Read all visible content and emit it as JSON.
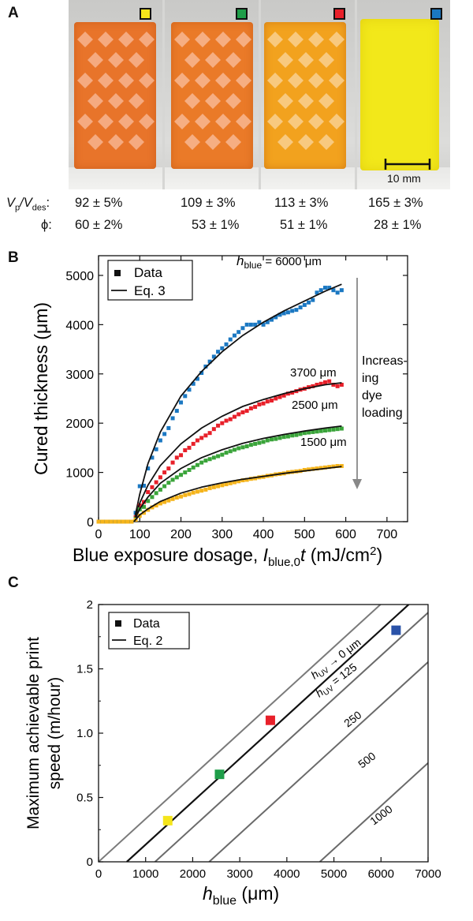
{
  "panel_a": {
    "label": "A",
    "marker_colors": [
      "#f5e51b",
      "#1f9e49",
      "#e8202a",
      "#1b78c2"
    ],
    "sample_colors": [
      "#e8742a",
      "#ea7a28",
      "#f2a21e",
      "#f2e81a"
    ],
    "scale_label": "10 mm",
    "row1_label_main": "V",
    "row1_label_sub1": "p",
    "row1_label_mid": "/V",
    "row1_label_sub2": "des",
    "row1_label_colon": ":",
    "row1_values": [
      "92 ± 5%",
      "109 ± 3%",
      "113 ± 3%",
      "165 ± 3%"
    ],
    "row2_label": "ϕ:",
    "row2_values": [
      "60 ± 2%",
      "53 ± 1%",
      "51 ± 1%",
      "28 ± 1%"
    ]
  },
  "panel_b": {
    "label": "B"
  },
  "panel_c": {
    "label": "C"
  },
  "chart_data": [
    {
      "type": "scatter",
      "panel": "B",
      "xlabel_main": "Blue exposure dosage,",
      "xlabel_var": "I",
      "xlabel_sub": "blue,0",
      "xlabel_t": "t",
      "xlabel_unit": "(mJ/cm",
      "xlabel_sup": "2",
      "xlabel_close": ")",
      "ylabel": "Cured thickness (μm)",
      "xlim": [
        0,
        750
      ],
      "ylim": [
        0,
        5400
      ],
      "xticks": [
        0,
        100,
        200,
        300,
        400,
        500,
        600,
        700
      ],
      "yticks": [
        0,
        1000,
        2000,
        3000,
        4000,
        5000
      ],
      "legend": {
        "position": "top-left",
        "data_label": "Data",
        "model_label": "Eq. 3"
      },
      "arrow_text": [
        "Increas-",
        "ing",
        "dye",
        "loading"
      ],
      "series": [
        {
          "name": "6000 μm",
          "label_prefix": "h",
          "label_sub": "blue",
          "label_rest": " = 6000 μm",
          "color": "#1b78c2",
          "x": [
            0,
            10,
            20,
            30,
            40,
            50,
            60,
            70,
            80,
            90,
            100,
            110,
            120,
            130,
            140,
            150,
            160,
            170,
            180,
            190,
            200,
            210,
            220,
            230,
            240,
            250,
            260,
            270,
            280,
            290,
            300,
            310,
            320,
            330,
            340,
            350,
            360,
            370,
            380,
            390,
            400,
            410,
            420,
            430,
            440,
            450,
            460,
            470,
            480,
            490,
            500,
            510,
            520,
            530,
            540,
            550,
            560,
            570,
            580,
            590
          ],
          "y": [
            0,
            0,
            0,
            0,
            0,
            0,
            0,
            0,
            0,
            180,
            720,
            730,
            1080,
            1300,
            1470,
            1650,
            1780,
            1900,
            2100,
            2250,
            2420,
            2550,
            2680,
            2800,
            2900,
            3020,
            3150,
            3250,
            3350,
            3450,
            3520,
            3600,
            3700,
            3780,
            3850,
            3930,
            4000,
            4000,
            4000,
            4050,
            4000,
            4050,
            4100,
            4150,
            4200,
            4230,
            4250,
            4280,
            4300,
            4350,
            4400,
            4450,
            4500,
            4650,
            4700,
            4750,
            4750,
            4700,
            4650,
            4700
          ],
          "fit": [
            [
              86,
              0
            ],
            [
              100,
              560
            ],
            [
              120,
              1180
            ],
            [
              150,
              1820
            ],
            [
              200,
              2550
            ],
            [
              250,
              3050
            ],
            [
              300,
              3450
            ],
            [
              350,
              3780
            ],
            [
              400,
              4050
            ],
            [
              450,
              4280
            ],
            [
              500,
              4480
            ],
            [
              550,
              4680
            ],
            [
              590,
              4820
            ]
          ]
        },
        {
          "name": "3700 μm",
          "label_prefix": "",
          "label_sub": "",
          "label_rest": "3700 μm",
          "color": "#e8202a",
          "x": [
            0,
            10,
            20,
            30,
            40,
            50,
            60,
            70,
            80,
            90,
            100,
            110,
            120,
            130,
            140,
            150,
            160,
            170,
            180,
            190,
            200,
            210,
            220,
            230,
            240,
            250,
            260,
            270,
            280,
            290,
            300,
            310,
            320,
            330,
            340,
            350,
            360,
            370,
            380,
            390,
            400,
            410,
            420,
            430,
            440,
            450,
            460,
            470,
            480,
            490,
            500,
            510,
            520,
            530,
            540,
            550,
            560,
            570,
            580,
            590
          ],
          "y": [
            0,
            0,
            0,
            0,
            0,
            0,
            0,
            0,
            0,
            90,
            330,
            400,
            600,
            700,
            800,
            900,
            1000,
            1080,
            1200,
            1300,
            1350,
            1450,
            1500,
            1580,
            1650,
            1700,
            1750,
            1800,
            1880,
            1950,
            2000,
            2050,
            2080,
            2130,
            2180,
            2220,
            2250,
            2300,
            2330,
            2380,
            2400,
            2440,
            2460,
            2500,
            2530,
            2560,
            2600,
            2620,
            2650,
            2680,
            2700,
            2730,
            2750,
            2780,
            2800,
            2830,
            2850,
            2780,
            2750,
            2780
          ],
          "fit": [
            [
              86,
              0
            ],
            [
              100,
              380
            ],
            [
              120,
              740
            ],
            [
              150,
              1140
            ],
            [
              200,
              1580
            ],
            [
              250,
              1900
            ],
            [
              300,
              2140
            ],
            [
              350,
              2340
            ],
            [
              400,
              2480
            ],
            [
              450,
              2600
            ],
            [
              500,
              2700
            ],
            [
              550,
              2780
            ],
            [
              590,
              2820
            ]
          ]
        },
        {
          "name": "2500 μm",
          "label_prefix": "",
          "label_sub": "",
          "label_rest": "2500 μm",
          "color": "#3aa43a",
          "x": [
            0,
            10,
            20,
            30,
            40,
            50,
            60,
            70,
            80,
            90,
            100,
            110,
            120,
            130,
            140,
            150,
            160,
            170,
            180,
            190,
            200,
            210,
            220,
            230,
            240,
            250,
            260,
            270,
            280,
            290,
            300,
            310,
            320,
            330,
            340,
            350,
            360,
            370,
            380,
            390,
            400,
            410,
            420,
            430,
            440,
            450,
            460,
            470,
            480,
            490,
            500,
            510,
            520,
            530,
            540,
            550,
            560,
            570,
            580,
            590
          ],
          "y": [
            0,
            0,
            0,
            0,
            0,
            0,
            0,
            0,
            0,
            60,
            250,
            300,
            420,
            500,
            580,
            650,
            720,
            790,
            850,
            900,
            950,
            1000,
            1050,
            1100,
            1150,
            1200,
            1240,
            1270,
            1300,
            1330,
            1360,
            1400,
            1430,
            1460,
            1490,
            1510,
            1530,
            1560,
            1580,
            1600,
            1620,
            1650,
            1670,
            1680,
            1700,
            1720,
            1730,
            1750,
            1760,
            1780,
            1800,
            1810,
            1820,
            1830,
            1840,
            1850,
            1860,
            1870,
            1880,
            1890
          ],
          "fit": [
            [
              86,
              0
            ],
            [
              100,
              260
            ],
            [
              120,
              500
            ],
            [
              150,
              780
            ],
            [
              200,
              1080
            ],
            [
              250,
              1300
            ],
            [
              300,
              1460
            ],
            [
              350,
              1590
            ],
            [
              400,
              1690
            ],
            [
              450,
              1770
            ],
            [
              500,
              1840
            ],
            [
              550,
              1900
            ],
            [
              590,
              1940
            ]
          ]
        },
        {
          "name": "1500 μm",
          "label_prefix": "",
          "label_sub": "",
          "label_rest": "1500 μm",
          "color": "#f5b41b",
          "x": [
            0,
            10,
            20,
            30,
            40,
            50,
            60,
            70,
            80,
            90,
            100,
            110,
            120,
            130,
            140,
            150,
            160,
            170,
            180,
            190,
            200,
            210,
            220,
            230,
            240,
            250,
            260,
            270,
            280,
            290,
            300,
            310,
            320,
            330,
            340,
            350,
            360,
            370,
            380,
            390,
            400,
            410,
            420,
            430,
            440,
            450,
            460,
            470,
            480,
            490,
            500,
            510,
            520,
            530,
            540,
            550,
            560,
            570,
            580,
            590
          ],
          "y": [
            0,
            0,
            0,
            0,
            0,
            0,
            0,
            0,
            0,
            40,
            120,
            180,
            240,
            290,
            330,
            370,
            400,
            430,
            460,
            490,
            510,
            540,
            560,
            590,
            610,
            630,
            650,
            680,
            700,
            720,
            740,
            760,
            780,
            800,
            820,
            840,
            850,
            870,
            880,
            900,
            910,
            930,
            940,
            960,
            970,
            980,
            1000,
            1010,
            1020,
            1030,
            1050,
            1060,
            1070,
            1080,
            1090,
            1100,
            1110,
            1120,
            1130,
            1130
          ],
          "fit": [
            [
              86,
              0
            ],
            [
              100,
              140
            ],
            [
              120,
              260
            ],
            [
              150,
              410
            ],
            [
              200,
              580
            ],
            [
              250,
              700
            ],
            [
              300,
              790
            ],
            [
              350,
              860
            ],
            [
              400,
              920
            ],
            [
              450,
              980
            ],
            [
              500,
              1030
            ],
            [
              550,
              1080
            ],
            [
              590,
              1120
            ]
          ]
        }
      ]
    },
    {
      "type": "scatter",
      "panel": "C",
      "xlabel_var": "h",
      "xlabel_sub": "blue",
      "xlabel_unit": "(μm)",
      "ylabel_line1": "Maximum achievable print",
      "ylabel_line2": "speed (m/hour)",
      "xlim": [
        0,
        7000
      ],
      "ylim": [
        0,
        2
      ],
      "xticks": [
        0,
        1000,
        2000,
        3000,
        4000,
        5000,
        6000,
        7000
      ],
      "yticks": [
        0,
        0.5,
        1.0,
        1.5,
        2
      ],
      "ytick_labels": [
        "0",
        "0.5",
        "1.0",
        "1.5",
        "2"
      ],
      "legend": {
        "position": "top-left",
        "data_label": "Data",
        "model_label": "Eq. 2"
      },
      "points": [
        {
          "x": 1470,
          "y": 0.32,
          "color": "#f5e51b"
        },
        {
          "x": 2570,
          "y": 0.68,
          "color": "#1f9e49"
        },
        {
          "x": 3650,
          "y": 1.1,
          "color": "#e8202a"
        },
        {
          "x": 6320,
          "y": 1.8,
          "color": "#2a52a8"
        }
      ],
      "lines": [
        {
          "h_uv": 0,
          "offset_x": 0,
          "color": "#7a7a7a",
          "label": ""
        },
        {
          "h_uv": 125,
          "offset_x": 600,
          "color": "#111111",
          "label_a": "h",
          "label_a_sub": "UV",
          "label_a_rest": " → 0 μm",
          "label_b": "h",
          "label_b_sub": "UV",
          "label_b_rest": " = 125"
        },
        {
          "h_uv": 250,
          "offset_x": 1200,
          "color": "#6a6a6a",
          "label": "250"
        },
        {
          "h_uv": 500,
          "offset_x": 2350,
          "color": "#6a6a6a",
          "label": "500"
        },
        {
          "h_uv": 1000,
          "offset_x": 4700,
          "color": "#6a6a6a",
          "label": "1000"
        }
      ],
      "line_slope_per_um": 0.000334
    }
  ]
}
